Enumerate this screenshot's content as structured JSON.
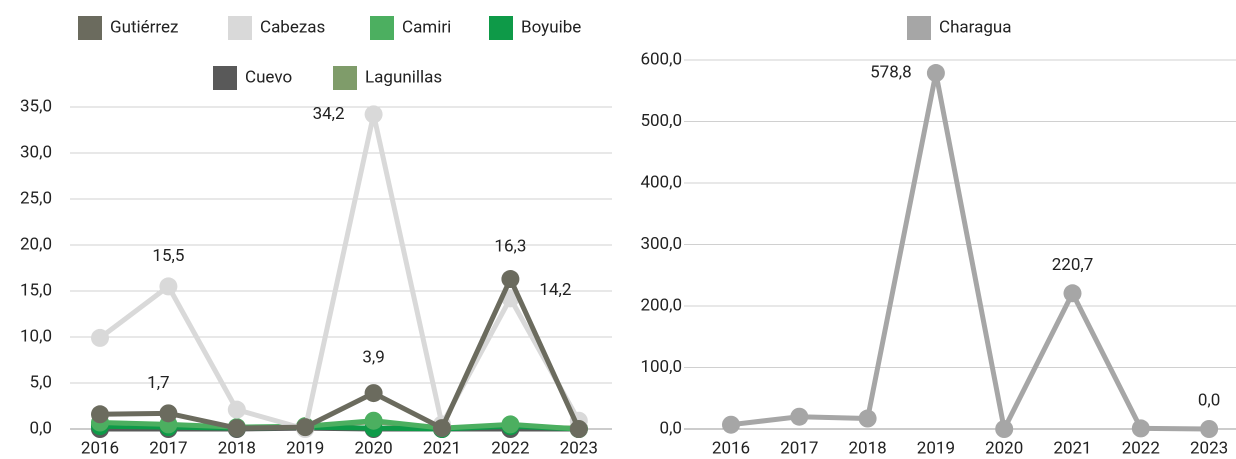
{
  "chart_data": [
    {
      "type": "line",
      "categories": [
        "2016",
        "2017",
        "2018",
        "2019",
        "2020",
        "2021",
        "2022",
        "2023"
      ],
      "ylim": [
        0,
        35
      ],
      "yticks": [
        {
          "value": 0,
          "label": "0,0"
        },
        {
          "value": 5,
          "label": "5,0"
        },
        {
          "value": 10,
          "label": "10,0"
        },
        {
          "value": 15,
          "label": "15,0"
        },
        {
          "value": 20,
          "label": "20,0"
        },
        {
          "value": 25,
          "label": "25,0"
        },
        {
          "value": 30,
          "label": "30,0"
        },
        {
          "value": 35,
          "label": "35,0"
        }
      ],
      "grid": true,
      "legend": "top",
      "series": [
        {
          "name": "Gutiérrez",
          "color": "#6b6b5e",
          "values": [
            1.6,
            1.7,
            0.1,
            0.2,
            3.9,
            0.1,
            16.3,
            0.0
          ],
          "value_labels": [
            null,
            "1,7",
            null,
            null,
            "3,9",
            null,
            "16,3",
            null
          ]
        },
        {
          "name": "Cabezas",
          "color": "#d9d9d9",
          "values": [
            9.9,
            15.5,
            2.1,
            0.0,
            34.2,
            0.5,
            14.2,
            0.9
          ],
          "value_labels": [
            null,
            "15,5",
            null,
            null,
            "34,2",
            null,
            "14,2",
            null
          ]
        },
        {
          "name": "Camiri",
          "color": "#4caf60",
          "values": [
            0.7,
            0.5,
            0.2,
            0.3,
            0.9,
            0.1,
            0.5,
            0.0
          ]
        },
        {
          "name": "Boyuibe",
          "color": "#0e9a48",
          "values": [
            0.3,
            0.2,
            0.1,
            0.2,
            0.1,
            0.0,
            0.3,
            0.0
          ]
        },
        {
          "name": "Cuevo",
          "color": "#595959",
          "values": [
            0.0,
            0.0,
            0.0,
            0.1,
            0.0,
            0.0,
            0.0,
            0.0
          ]
        },
        {
          "name": "Lagunillas",
          "color": "#7f9c6a",
          "values": [
            0.5,
            0.4,
            0.1,
            0.3,
            0.8,
            0.1,
            0.2,
            0.1
          ]
        }
      ]
    },
    {
      "type": "line",
      "categories": [
        "2016",
        "2017",
        "2018",
        "2019",
        "2020",
        "2021",
        "2022",
        "2023"
      ],
      "ylim": [
        0,
        600
      ],
      "yticks": [
        {
          "value": 0,
          "label": "0,0"
        },
        {
          "value": 100,
          "label": "100,0"
        },
        {
          "value": 200,
          "label": "200,0"
        },
        {
          "value": 300,
          "label": "300,0"
        },
        {
          "value": 400,
          "label": "400,0"
        },
        {
          "value": 500,
          "label": "500,0"
        },
        {
          "value": 600,
          "label": "600,0"
        }
      ],
      "grid": true,
      "legend": "top",
      "series": [
        {
          "name": "Charagua",
          "color": "#a6a6a6",
          "values": [
            7,
            20,
            17,
            578.8,
            0,
            220.7,
            1,
            0.0
          ],
          "value_labels": [
            null,
            null,
            null,
            "578,8",
            null,
            "220,7",
            null,
            "0,0"
          ]
        }
      ]
    }
  ]
}
